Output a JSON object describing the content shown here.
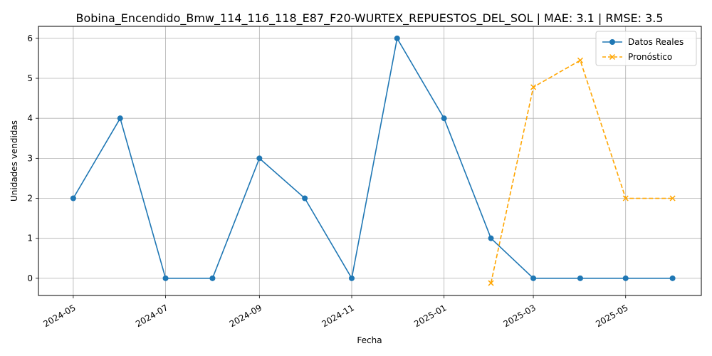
{
  "chart_data": {
    "type": "line",
    "title": "Bobina_Encendido_Bmw_114_116_118_E87_F20-WURTEX_REPUESTOS_DEL_SOL | MAE: 3.1 | RMSE: 3.5",
    "xlabel": "Fecha",
    "ylabel": "Unidades vendidas",
    "xlim": [
      "2024-04-08",
      "2025-06-20"
    ],
    "ylim": [
      -0.43,
      6.3
    ],
    "grid": true,
    "legend_position": "top-right",
    "x_ticks": [
      "2024-05",
      "2024-07",
      "2024-09",
      "2024-11",
      "2025-01",
      "2025-03",
      "2025-05"
    ],
    "x_tick_dates": [
      "2024-05-01",
      "2024-07-01",
      "2024-09-01",
      "2024-11-01",
      "2025-01-01",
      "2025-03-01",
      "2025-05-01"
    ],
    "y_ticks": [
      0,
      1,
      2,
      3,
      4,
      5,
      6
    ],
    "series": [
      {
        "name": "Datos Reales",
        "color": "#1f77b4",
        "marker": "circle",
        "line_style": "solid",
        "x": [
          "2024-05-01",
          "2024-06-01",
          "2024-07-01",
          "2024-08-01",
          "2024-09-01",
          "2024-10-01",
          "2024-11-01",
          "2024-12-01",
          "2025-01-01",
          "2025-02-01",
          "2025-03-01",
          "2025-04-01",
          "2025-05-01",
          "2025-06-01"
        ],
        "values": [
          2,
          4,
          0,
          0,
          3,
          2,
          0,
          6,
          4,
          1,
          0,
          0,
          0,
          0
        ]
      },
      {
        "name": "Pronóstico",
        "color": "#ffa500",
        "marker": "x",
        "line_style": "dashed",
        "x": [
          "2025-02-01",
          "2025-03-01",
          "2025-04-01",
          "2025-05-01",
          "2025-06-01"
        ],
        "values": [
          -0.12,
          4.78,
          5.45,
          2.0,
          2.0
        ]
      }
    ]
  }
}
